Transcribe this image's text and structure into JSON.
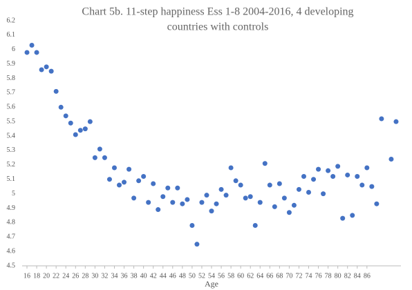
{
  "chart_data": {
    "type": "scatter",
    "title": [
      "Chart 5b. 11-step happiness Ess 1-8 2004-2016, 4 developing",
      "countries with controls"
    ],
    "x_label": "Age",
    "color": "#4472c4",
    "x": [
      16,
      17,
      18,
      19,
      20,
      21,
      22,
      23,
      24,
      25,
      26,
      27,
      28,
      29,
      30,
      31,
      32,
      33,
      34,
      35,
      36,
      37,
      38,
      39,
      40,
      41,
      42,
      43,
      44,
      45,
      46,
      47,
      48,
      49,
      50,
      51,
      52,
      53,
      54,
      55,
      56,
      57,
      58,
      59,
      60,
      61,
      62,
      63,
      64,
      65,
      66,
      67,
      68,
      69,
      70,
      71,
      72,
      73,
      74,
      75,
      76,
      77,
      78,
      79,
      80,
      81,
      82,
      83,
      84,
      85,
      86,
      87,
      88,
      89,
      91,
      92
    ],
    "values": [
      5.98,
      6.03,
      5.98,
      5.86,
      5.88,
      5.85,
      5.71,
      5.6,
      5.54,
      5.49,
      5.41,
      5.44,
      5.45,
      5.5,
      5.25,
      5.31,
      5.25,
      5.1,
      5.18,
      5.06,
      5.08,
      5.17,
      4.97,
      5.09,
      5.12,
      4.94,
      5.07,
      4.89,
      4.98,
      5.04,
      4.94,
      5.04,
      4.93,
      4.96,
      4.78,
      4.65,
      4.94,
      4.99,
      4.88,
      4.93,
      5.03,
      4.99,
      5.18,
      5.09,
      5.06,
      4.97,
      4.98,
      4.78,
      4.94,
      5.21,
      5.06,
      4.91,
      5.07,
      4.97,
      4.87,
      4.92,
      5.03,
      5.12,
      5.01,
      5.1,
      5.17,
      5.0,
      5.16,
      5.12,
      5.19,
      4.83,
      5.13,
      4.85,
      5.12,
      5.06,
      5.18,
      5.05,
      4.93,
      5.52,
      5.24,
      5.5
    ],
    "xlim": [
      15,
      93
    ],
    "xticks": [
      16,
      18,
      20,
      22,
      24,
      26,
      28,
      30,
      32,
      34,
      36,
      38,
      40,
      42,
      44,
      46,
      48,
      50,
      52,
      54,
      56,
      58,
      60,
      62,
      64,
      66,
      68,
      70,
      72,
      74,
      76,
      78,
      80,
      82,
      84,
      86
    ],
    "ylim": [
      4.5,
      6.2
    ],
    "yticks": [
      4.5,
      4.6,
      4.7,
      4.8,
      4.9,
      5,
      5.1,
      5.2,
      5.3,
      5.4,
      5.5,
      5.6,
      5.7,
      5.8,
      5.9,
      6,
      6.1,
      6.2
    ]
  }
}
